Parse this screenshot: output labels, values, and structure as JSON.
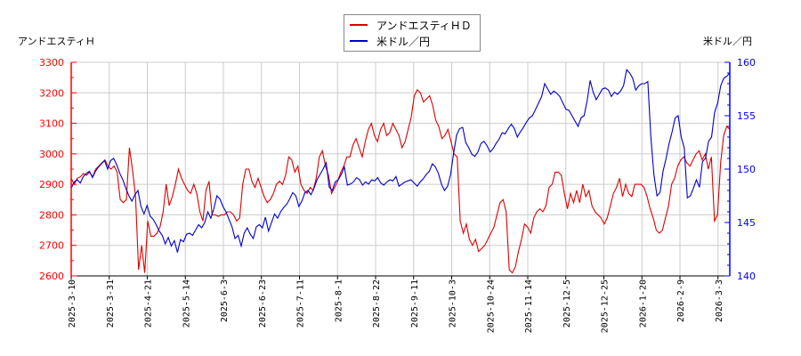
{
  "chart_data": {
    "type": "line",
    "title": "",
    "legend": {
      "position": "top-center",
      "entries": [
        {
          "name": "アンドエスティＨＤ",
          "color": "#dd0000",
          "axis": "left"
        },
        {
          "name": "米ドル／円",
          "color": "#0000cc",
          "axis": "right"
        }
      ]
    },
    "y_left": {
      "label": "アンドエスティＨ",
      "range": [
        2600,
        3300
      ],
      "ticks": [
        2600,
        2700,
        2800,
        2900,
        3000,
        3100,
        3200,
        3300
      ],
      "color": "#ff0000"
    },
    "y_right": {
      "label": "米ドル／円",
      "range": [
        140,
        160
      ],
      "ticks": [
        140,
        145,
        150,
        155,
        160
      ],
      "color": "#0000ff"
    },
    "x_ticks": [
      "2025-3-10",
      "2025-3-31",
      "2025-4-21",
      "2025-5-14",
      "2025-6-3",
      "2025-6-23",
      "2025-7-11",
      "2025-8-1",
      "2025-8-22",
      "2025-9-11",
      "2025-10-3",
      "2025-10-24",
      "2025-11-14",
      "2025-12-5",
      "2025-12-25",
      "2026-1-20",
      "2026-2-9",
      "2026-3-3"
    ],
    "grid": true,
    "series": [
      {
        "name": "アンドエスティＨＤ",
        "axis": "left",
        "color": "#dd0000",
        "values": [
          2920,
          2900,
          2920,
          2925,
          2935,
          2930,
          2940,
          2925,
          2950,
          2960,
          2970,
          2980,
          2960,
          2950,
          2960,
          2940,
          2850,
          2840,
          2850,
          3020,
          2950,
          2860,
          2620,
          2700,
          2610,
          2780,
          2730,
          2730,
          2740,
          2760,
          2810,
          2900,
          2830,
          2860,
          2900,
          2950,
          2920,
          2900,
          2880,
          2870,
          2900,
          2870,
          2810,
          2780,
          2880,
          2910,
          2800,
          2800,
          2795,
          2800,
          2800,
          2810,
          2810,
          2800,
          2780,
          2790,
          2900,
          2950,
          2950,
          2910,
          2890,
          2920,
          2890,
          2860,
          2840,
          2850,
          2870,
          2900,
          2910,
          2900,
          2930,
          2990,
          2980,
          2940,
          2960,
          2900,
          2880,
          2870,
          2890,
          2880,
          2920,
          2990,
          3010,
          2960,
          2930,
          2870,
          2890,
          2910,
          2940,
          2960,
          2990,
          2990,
          3030,
          3050,
          3020,
          2990,
          3040,
          3080,
          3100,
          3060,
          3040,
          3080,
          3100,
          3060,
          3070,
          3100,
          3080,
          3060,
          3020,
          3040,
          3080,
          3120,
          3190,
          3210,
          3200,
          3170,
          3180,
          3190,
          3160,
          3110,
          3090,
          3050,
          3060,
          3080,
          3040,
          3000,
          2990,
          2780,
          2740,
          2770,
          2720,
          2700,
          2720,
          2680,
          2690,
          2700,
          2720,
          2740,
          2760,
          2800,
          2840,
          2850,
          2810,
          2620,
          2610,
          2630,
          2680,
          2720,
          2770,
          2760,
          2740,
          2790,
          2810,
          2820,
          2810,
          2830,
          2890,
          2900,
          2940,
          2940,
          2930,
          2870,
          2820,
          2870,
          2840,
          2880,
          2840,
          2900,
          2860,
          2880,
          2830,
          2810,
          2800,
          2790,
          2770,
          2790,
          2830,
          2870,
          2890,
          2920,
          2860,
          2900,
          2870,
          2860,
          2900,
          2900,
          2900,
          2890,
          2860,
          2820,
          2790,
          2750,
          2740,
          2750,
          2790,
          2830,
          2900,
          2920,
          2960,
          2980,
          2990,
          2970,
          2960,
          2980,
          3000,
          3010,
          2980,
          3000,
          2950,
          2990,
          2780,
          2800,
          2970,
          3060,
          3090,
          3080
        ]
      },
      {
        "name": "米ドル／円",
        "axis": "right",
        "color": "#0000cc",
        "values": [
          148.2,
          148.8,
          149.0,
          148.7,
          149.3,
          149.6,
          149.8,
          149.2,
          149.8,
          150.2,
          150.5,
          150.8,
          150.0,
          150.8,
          151.0,
          150.4,
          149.6,
          149.0,
          148.2,
          147.5,
          147.0,
          147.6,
          148.0,
          146.5,
          145.8,
          146.6,
          145.6,
          145.3,
          144.8,
          144.2,
          143.8,
          143.0,
          143.6,
          142.8,
          143.3,
          142.2,
          143.4,
          143.2,
          143.9,
          144.0,
          143.8,
          144.3,
          144.8,
          144.5,
          145.0,
          146.0,
          145.4,
          146.3,
          147.5,
          147.2,
          146.5,
          146.0,
          145.3,
          144.6,
          143.5,
          143.8,
          142.8,
          144.0,
          144.5,
          143.9,
          143.5,
          144.6,
          144.8,
          144.5,
          145.5,
          144.2,
          145.0,
          145.8,
          145.4,
          146.0,
          146.4,
          146.7,
          147.2,
          147.8,
          147.5,
          146.5,
          147.0,
          147.8,
          148.0,
          147.6,
          148.2,
          149.0,
          149.5,
          150.0,
          150.6,
          148.3,
          148.0,
          148.8,
          149.0,
          149.5,
          150.2,
          148.5,
          148.6,
          148.8,
          149.2,
          149.0,
          148.5,
          148.8,
          148.6,
          149.0,
          148.9,
          149.2,
          148.7,
          148.5,
          148.8,
          149.0,
          148.9,
          149.3,
          148.4,
          148.6,
          148.8,
          148.9,
          149.0,
          148.7,
          148.4,
          148.8,
          149.1,
          149.5,
          149.8,
          150.5,
          150.2,
          149.6,
          148.6,
          148.0,
          148.4,
          149.5,
          151.5,
          153.2,
          153.8,
          153.9,
          152.5,
          152.0,
          151.4,
          151.2,
          151.6,
          152.4,
          152.6,
          152.2,
          151.6,
          151.9,
          152.4,
          152.8,
          153.4,
          153.3,
          153.8,
          154.2,
          153.8,
          153.0,
          153.5,
          153.9,
          154.4,
          154.8,
          155.0,
          155.6,
          156.2,
          156.8,
          158.0,
          157.5,
          157.0,
          157.3,
          157.1,
          156.8,
          156.2,
          155.6,
          155.5,
          155.0,
          154.5,
          154.0,
          154.8,
          155.0,
          156.4,
          158.3,
          157.2,
          156.5,
          157.0,
          157.5,
          157.6,
          157.4,
          156.8,
          157.2,
          157.0,
          157.3,
          157.8,
          159.3,
          159.0,
          158.5,
          157.4,
          157.8,
          158.0,
          158.0,
          158.2,
          153.0,
          149.5,
          147.5,
          147.8,
          149.8,
          151.0,
          152.4,
          153.5,
          154.8,
          155.0,
          153.0,
          152.0,
          147.3,
          147.5,
          148.2,
          149.0,
          148.3,
          150.7,
          151.0,
          152.6,
          153.0,
          155.3,
          156.2,
          157.8,
          158.5,
          158.7,
          159.0
        ]
      }
    ]
  }
}
